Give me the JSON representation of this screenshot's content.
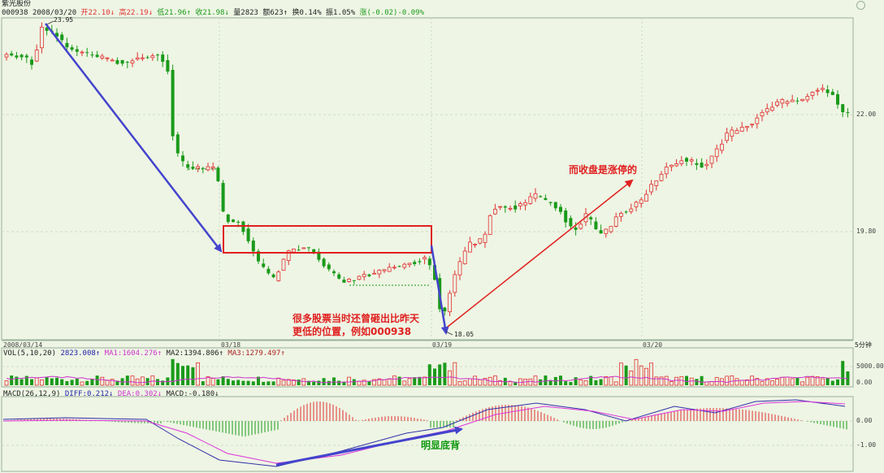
{
  "header": {
    "stock_name": "紫光股份",
    "code": "000938",
    "date": "2008/03/20",
    "open_label": "开22.10↓",
    "high_label": "高22.19↓",
    "low_label": "低21.96↑",
    "close_label": "收21.98↓",
    "volume_label": "量2823",
    "amount_label": "额623↑",
    "turnover_label": "换0.14%",
    "amplitude_label": "振1.05%",
    "change_label": "涨(-0.02)-0.09%"
  },
  "colors": {
    "background": "#eef5e4",
    "up": "#e03030",
    "down": "#1a9a1a",
    "ma1": "#cc33cc",
    "macd_diff": "#3030aa",
    "macd_dea": "#dd33dd",
    "annot_blue": "#4444cc",
    "annot_red": "#e02020",
    "annot_green": "#119911"
  },
  "price_panel": {
    "y_ticks": [
      "22.00",
      "19.80"
    ],
    "high_marker": "23.95",
    "low_marker": "18.05",
    "period": "5分钟"
  },
  "x_axis": {
    "labels": [
      "2008/03/14",
      "03/18",
      "03/19",
      "03/20"
    ]
  },
  "volume_panel": {
    "label": "VOL(5,10,20)",
    "vol": "2823.008↑",
    "ma1": "MA1:1604.276↑",
    "ma2": "MA2:1394.806↑",
    "ma3": "MA3:1279.497↑",
    "y_ticks": [
      "5000.00",
      "0.00"
    ]
  },
  "macd_panel": {
    "label": "MACD(26,12,9)",
    "diff": "DIFF:0.212↓",
    "dea": "DEA:0.302↓",
    "macd": "MACD:-0.180↓",
    "y_ticks": [
      "0.00",
      "-1.00"
    ]
  },
  "annotations": {
    "text_lower_1": "很多股票当时还曾砸出比昨天",
    "text_lower_2": "更低的位置，例如000938",
    "text_close": "而收盘是涨停的",
    "text_divergence": "明显底背"
  },
  "chart_data": {
    "type": "candlestick",
    "symbol": "000938",
    "period": "5分钟",
    "y_ticks": [
      22.0,
      19.8
    ],
    "high": 23.95,
    "low": 18.05,
    "last_close": 21.98,
    "x_labels": [
      "2008/03/14",
      "03/18",
      "03/19",
      "03/20"
    ]
  }
}
